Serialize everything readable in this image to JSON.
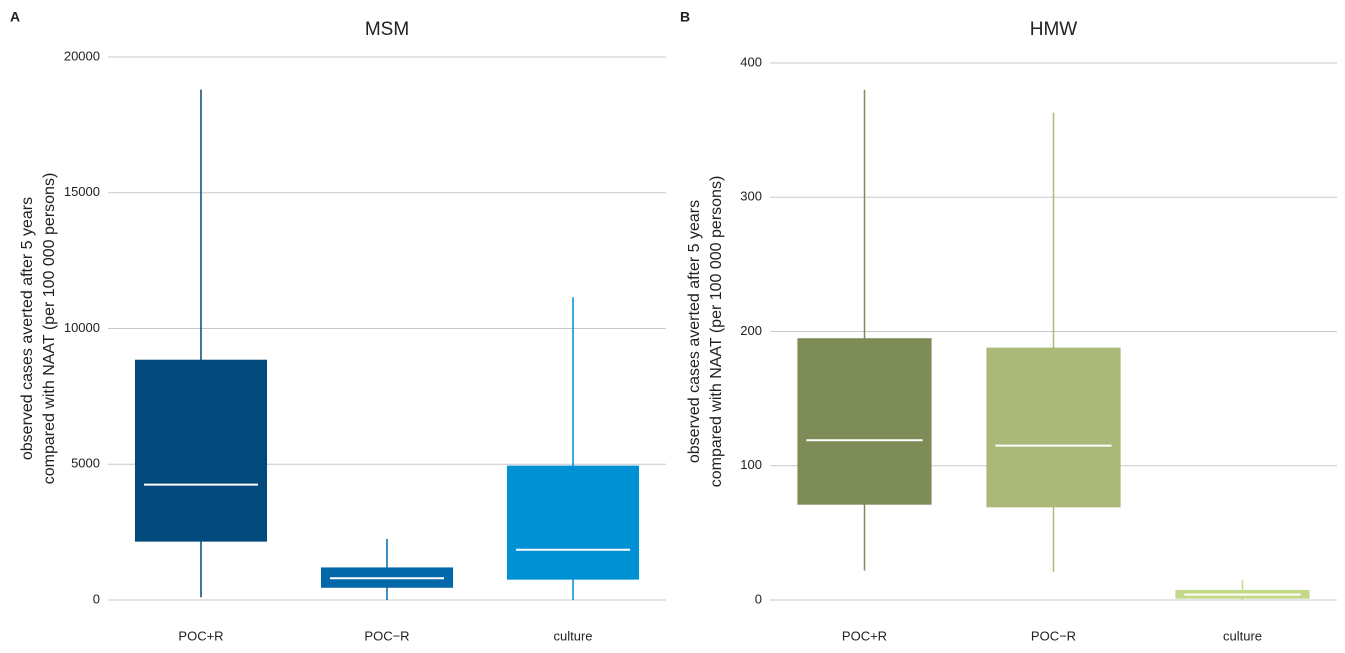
{
  "chart_data": [
    {
      "type": "box",
      "panel": "A",
      "title": "MSM",
      "y_label": [
        "observed cases averted after 5 years",
        "compared with NAAT (per 100 000 persons)"
      ],
      "categories": [
        "POC+R",
        "POC−R",
        "culture"
      ],
      "boxes": [
        {
          "min": 100,
          "q1": 2150,
          "median": 4250,
          "q3": 8850,
          "max": 18800
        },
        {
          "min": 0,
          "q1": 450,
          "median": 800,
          "q3": 1200,
          "max": 2250
        },
        {
          "min": 0,
          "q1": 750,
          "median": 1850,
          "q3": 4950,
          "max": 11150
        }
      ],
      "colors": [
        "#034a7c",
        "#0468a8",
        "#0090d4"
      ],
      "ylim": [
        0,
        20000
      ],
      "yticks": [
        0,
        5000,
        10000,
        15000,
        20000
      ],
      "grid": true
    },
    {
      "type": "box",
      "panel": "B",
      "title": "HMW",
      "y_label": [
        "observed cases averted after 5 years",
        "compared with NAAT (per 100 000 persons)"
      ],
      "categories": [
        "POC+R",
        "POC−R",
        "culture"
      ],
      "boxes": [
        {
          "min": 22,
          "q1": 71,
          "median": 119,
          "q3": 195,
          "max": 380
        },
        {
          "min": 21,
          "q1": 69,
          "median": 115,
          "q3": 188,
          "max": 363
        },
        {
          "min": 0,
          "q1": 1,
          "median": 4,
          "q3": 7.5,
          "max": 15
        }
      ],
      "colors": [
        "#7d8b56",
        "#aab977",
        "#c5d98a"
      ],
      "ylim": [
        0,
        400
      ],
      "yticks": [
        0,
        100,
        200,
        300,
        400
      ],
      "grid": true
    }
  ]
}
